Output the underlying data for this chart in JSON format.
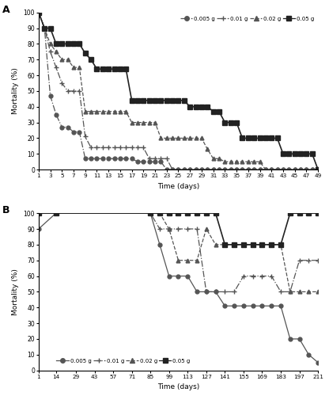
{
  "panel_A": {
    "title": "A",
    "xlabel": "Time (days)",
    "ylabel": "Mortality (%)",
    "xlim": [
      1,
      49
    ],
    "ylim": [
      0,
      100
    ],
    "xticks": [
      1,
      3,
      5,
      7,
      9,
      11,
      13,
      15,
      17,
      19,
      21,
      23,
      25,
      27,
      29,
      31,
      33,
      35,
      37,
      39,
      41,
      43,
      45,
      47,
      49
    ],
    "yticks": [
      0,
      10,
      20,
      30,
      40,
      50,
      60,
      70,
      80,
      90,
      100
    ],
    "series": {
      "0.005g": {
        "x": [
          1,
          2,
          3,
          4,
          5,
          6,
          7,
          8,
          9,
          10,
          11,
          12,
          13,
          14,
          15,
          16,
          17,
          18,
          19,
          20,
          21,
          22,
          23,
          24,
          25,
          26,
          27,
          28,
          29,
          30,
          31,
          32,
          33,
          34,
          35,
          36,
          37,
          38,
          39,
          40,
          41,
          42,
          43,
          44,
          45,
          46,
          47,
          48,
          49
        ],
        "y": [
          100,
          90,
          47,
          35,
          27,
          27,
          24,
          24,
          7,
          7,
          7,
          7,
          7,
          7,
          7,
          7,
          7,
          5,
          5,
          5,
          5,
          5,
          0,
          0,
          0,
          0,
          0,
          0,
          0,
          0,
          0,
          0,
          0,
          0,
          0,
          0,
          0,
          0,
          0,
          0,
          0,
          0,
          0,
          0,
          0,
          0,
          0,
          0,
          0
        ],
        "linestyle": "-.",
        "marker": "o",
        "color": "#555555",
        "markersize": 3.5,
        "linewidth": 0.9
      },
      "0.01g": {
        "x": [
          1,
          2,
          3,
          4,
          5,
          6,
          7,
          8,
          9,
          10,
          11,
          12,
          13,
          14,
          15,
          16,
          17,
          18,
          19,
          20,
          21,
          22,
          23,
          24,
          25,
          26,
          27,
          28,
          29,
          30,
          31,
          32,
          33,
          34,
          35,
          36,
          37,
          38,
          39,
          40,
          41,
          42,
          43,
          44,
          45,
          46,
          47,
          48,
          49
        ],
        "y": [
          100,
          90,
          75,
          65,
          55,
          50,
          50,
          50,
          21,
          14,
          14,
          14,
          14,
          14,
          14,
          14,
          14,
          14,
          14,
          7,
          7,
          7,
          7,
          0,
          0,
          0,
          0,
          0,
          0,
          0,
          0,
          0,
          0,
          0,
          0,
          0,
          0,
          0,
          0,
          0,
          0,
          0,
          0,
          0,
          0,
          0,
          0,
          0,
          0
        ],
        "linestyle": "-.",
        "marker": "+",
        "color": "#555555",
        "markersize": 4.5,
        "linewidth": 0.9
      },
      "0.02g": {
        "x": [
          1,
          2,
          3,
          4,
          5,
          6,
          7,
          8,
          9,
          10,
          11,
          12,
          13,
          14,
          15,
          16,
          17,
          18,
          19,
          20,
          21,
          22,
          23,
          24,
          25,
          26,
          27,
          28,
          29,
          30,
          31,
          32,
          33,
          34,
          35,
          36,
          37,
          38,
          39,
          40,
          41,
          42,
          43,
          44,
          45,
          46,
          47,
          48,
          49
        ],
        "y": [
          100,
          90,
          80,
          75,
          70,
          70,
          65,
          65,
          37,
          37,
          37,
          37,
          37,
          37,
          37,
          37,
          30,
          30,
          30,
          30,
          30,
          20,
          20,
          20,
          20,
          20,
          20,
          20,
          20,
          13,
          7,
          7,
          5,
          5,
          5,
          5,
          5,
          5,
          5,
          0,
          0,
          0,
          0,
          0,
          0,
          0,
          0,
          0,
          0
        ],
        "linestyle": "--",
        "marker": "^",
        "color": "#555555",
        "markersize": 3.5,
        "linewidth": 0.9
      },
      "0.05g": {
        "x": [
          1,
          2,
          3,
          4,
          5,
          6,
          7,
          8,
          9,
          10,
          11,
          12,
          13,
          14,
          15,
          16,
          17,
          18,
          19,
          20,
          21,
          22,
          23,
          24,
          25,
          26,
          27,
          28,
          29,
          30,
          31,
          32,
          33,
          34,
          35,
          36,
          37,
          38,
          39,
          40,
          41,
          42,
          43,
          44,
          45,
          46,
          47,
          48,
          49
        ],
        "y": [
          100,
          90,
          90,
          80,
          80,
          80,
          80,
          80,
          74,
          70,
          64,
          64,
          64,
          64,
          64,
          64,
          44,
          44,
          44,
          44,
          44,
          44,
          44,
          44,
          44,
          44,
          40,
          40,
          40,
          40,
          37,
          37,
          30,
          30,
          30,
          20,
          20,
          20,
          20,
          20,
          20,
          20,
          10,
          10,
          10,
          10,
          10,
          10,
          0
        ],
        "linestyle": "-",
        "marker": "s",
        "color": "#222222",
        "markersize": 4,
        "linewidth": 1.2
      }
    },
    "legend_labels": [
      "0.005 g",
      "0.01 g",
      "0.02 g",
      "0.05 g"
    ],
    "legend_linestyles": [
      "-.",
      "-.",
      "--",
      "-"
    ],
    "legend_markers": [
      "o",
      "+",
      "^",
      "s"
    ],
    "legend_colors": [
      "#555555",
      "#555555",
      "#555555",
      "#222222"
    ]
  },
  "panel_B": {
    "title": "B",
    "xlabel": "Time (days)",
    "ylabel": "Mortality (%)",
    "xlim": [
      1,
      211
    ],
    "ylim": [
      0,
      100
    ],
    "xticks": [
      1,
      14,
      29,
      43,
      57,
      71,
      85,
      99,
      113,
      127,
      141,
      155,
      169,
      183,
      197,
      211
    ],
    "yticks": [
      0,
      10,
      20,
      30,
      40,
      50,
      60,
      70,
      80,
      90,
      100
    ],
    "series": {
      "0.005g": {
        "x": [
          1,
          14,
          85,
          92,
          99,
          106,
          113,
          120,
          127,
          134,
          141,
          148,
          155,
          162,
          169,
          176,
          183,
          190,
          197,
          204,
          211
        ],
        "y": [
          90,
          100,
          100,
          80,
          60,
          60,
          60,
          50,
          50,
          50,
          41,
          41,
          41,
          41,
          41,
          41,
          41,
          20,
          20,
          10,
          5
        ],
        "linestyle": "-",
        "marker": "o",
        "color": "#555555",
        "markersize": 3.5,
        "linewidth": 0.9
      },
      "0.01g": {
        "x": [
          1,
          14,
          85,
          92,
          99,
          106,
          113,
          120,
          127,
          134,
          141,
          148,
          155,
          162,
          169,
          176,
          183,
          190,
          197,
          204,
          211
        ],
        "y": [
          100,
          100,
          100,
          90,
          90,
          90,
          90,
          90,
          50,
          50,
          50,
          50,
          60,
          60,
          60,
          60,
          50,
          50,
          70,
          70,
          70
        ],
        "linestyle": "-.",
        "marker": "+",
        "color": "#555555",
        "markersize": 4.5,
        "linewidth": 0.9
      },
      "0.02g": {
        "x": [
          1,
          14,
          85,
          92,
          99,
          106,
          113,
          120,
          127,
          134,
          141,
          148,
          155,
          162,
          169,
          176,
          183,
          190,
          197,
          204,
          211
        ],
        "y": [
          100,
          100,
          100,
          100,
          90,
          70,
          70,
          70,
          90,
          80,
          80,
          80,
          80,
          80,
          80,
          80,
          80,
          50,
          50,
          50,
          50
        ],
        "linestyle": "--",
        "marker": "^",
        "color": "#555555",
        "markersize": 3.5,
        "linewidth": 0.9
      },
      "0.05g": {
        "x": [
          1,
          14,
          85,
          92,
          99,
          106,
          113,
          120,
          127,
          134,
          141,
          148,
          155,
          162,
          169,
          176,
          183,
          190,
          197,
          204,
          211
        ],
        "y": [
          100,
          100,
          100,
          100,
          100,
          100,
          100,
          100,
          100,
          100,
          80,
          80,
          80,
          80,
          80,
          80,
          80,
          100,
          100,
          100,
          100
        ],
        "linestyle": "-",
        "marker": "s",
        "color": "#222222",
        "markersize": 4,
        "linewidth": 1.2
      }
    },
    "legend_labels": [
      "0.005 g",
      "0.01 g",
      "0.02 g",
      "0.05 g"
    ],
    "legend_linestyles": [
      "-",
      "-.",
      "--",
      "-"
    ],
    "legend_markers": [
      "o",
      "+",
      "^",
      "s"
    ],
    "legend_colors": [
      "#555555",
      "#555555",
      "#555555",
      "#222222"
    ]
  }
}
